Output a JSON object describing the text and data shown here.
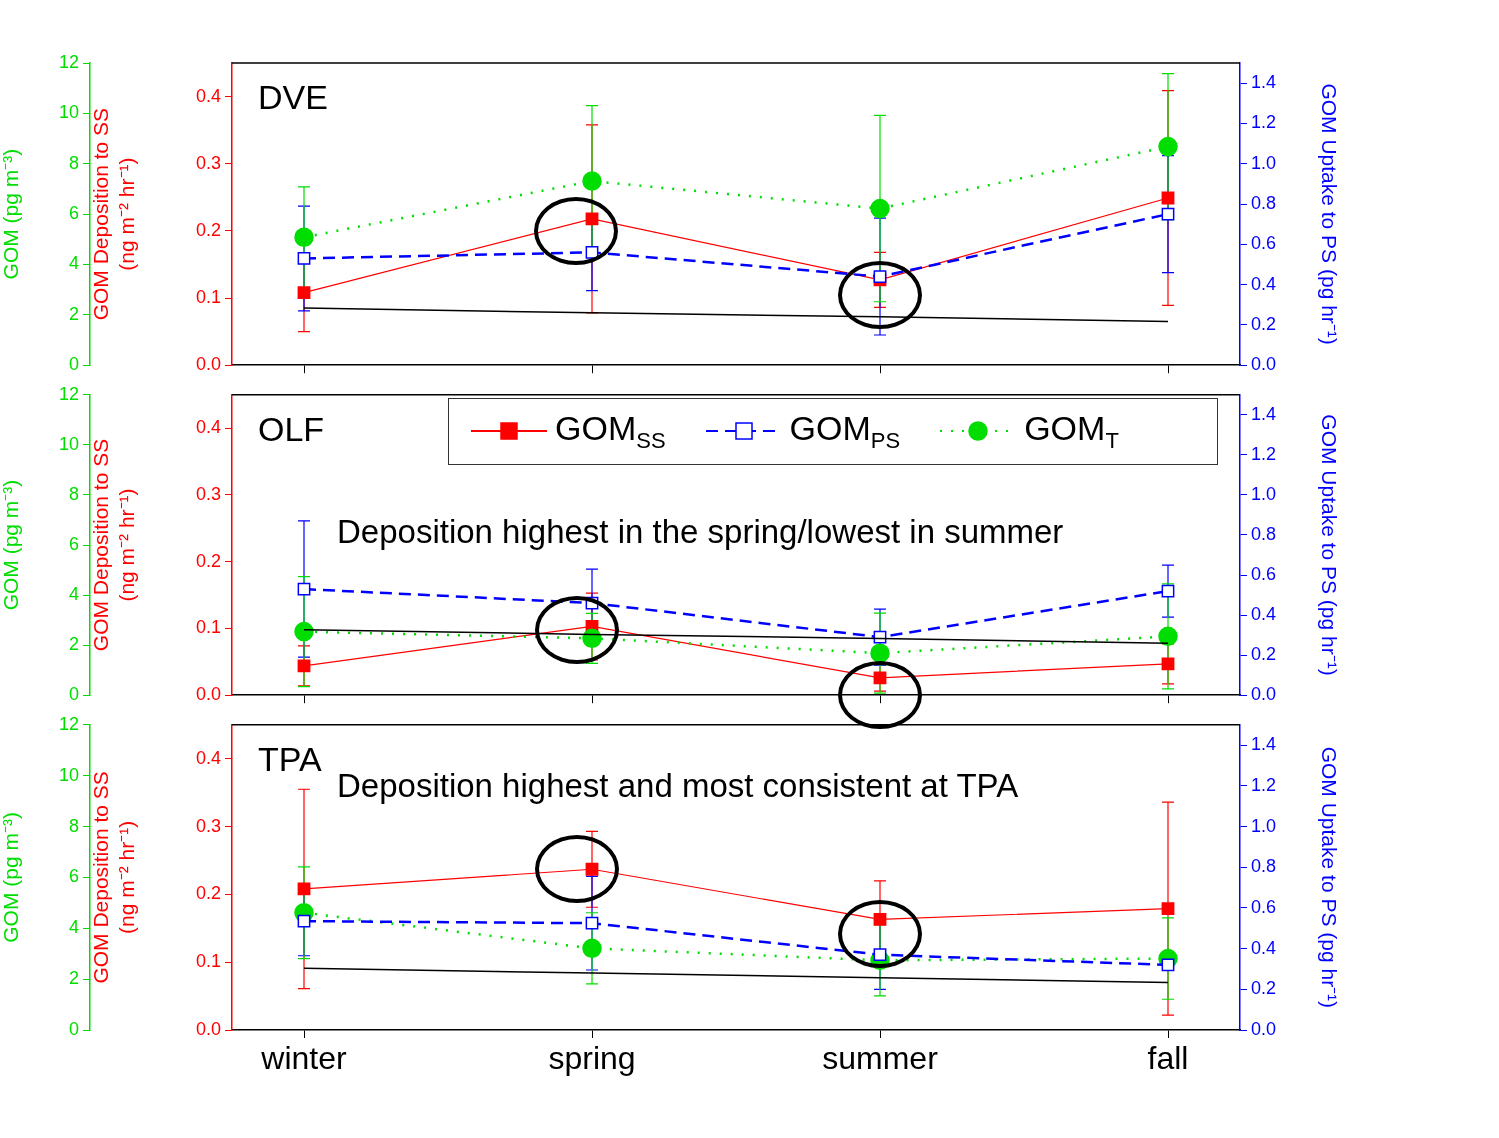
{
  "chart_data": [
    {
      "type": "line",
      "title": "DVE",
      "categories": [
        null,
        null,
        null,
        null
      ],
      "tick_labels": "y",
      "ylabel": "GOM Deposition to SS (ng m⁻² hr⁻¹)",
      "y2label": "GOM Uptake to PS (pg hr⁻¹)",
      "y3label": "GOM (pg m⁻³)",
      "ylim": [
        0,
        0.45
      ],
      "yticks": [
        {
          "value": 0,
          "label": "0.0"
        },
        {
          "value": 0.1,
          "label": "0.1"
        },
        {
          "value": 0.2,
          "label": "0.2"
        },
        {
          "value": 0.3,
          "label": "0.3"
        },
        {
          "value": 0.4,
          "label": "0.4"
        }
      ],
      "y2lim": [
        0,
        1.5
      ],
      "y2ticks": [
        {
          "value": 0,
          "label": "0.0"
        },
        {
          "value": 0.2,
          "label": "0.2"
        },
        {
          "value": 0.4,
          "label": "0.4"
        },
        {
          "value": 0.6,
          "label": "0.6"
        },
        {
          "value": 0.8,
          "label": "0.8"
        },
        {
          "value": 1,
          "label": "1.0"
        },
        {
          "value": 1.2,
          "label": "1.2"
        },
        {
          "value": 1.4,
          "label": "1.4"
        }
      ],
      "y3lim": [
        0,
        12
      ],
      "y3ticks": [
        0,
        2,
        4,
        6,
        8,
        10,
        12
      ],
      "series": [
        {
          "color": "#ff0000",
          "axis": "y",
          "marker": "square",
          "line_style": "solid",
          "values": [
            0.108,
            0.218,
            0.127,
            0.249
          ],
          "errors": [
            0.058,
            0.14,
            0.041,
            0.16
          ]
        },
        {
          "color": "#0000ff",
          "axis": "y2",
          "marker": "square",
          "line_style": "dashed",
          "values": [
            0.53,
            0.56,
            0.44,
            0.75
          ],
          "errors": [
            0.26,
            0.19,
            0.29,
            0.29
          ]
        },
        {
          "color": "#00dd00",
          "axis": "y3",
          "marker": "circle",
          "line_style": "dotted",
          "values": [
            5.08,
            7.31,
            6.22,
            8.68
          ],
          "errors": [
            2.0,
            3.0,
            3.7,
            2.9
          ]
        },
        {
          "color": "#000000",
          "axis": "y",
          "marker": "none",
          "line_style": "solid",
          "values": [
            0.085,
            0.078,
            0.072,
            0.065
          ]
        }
      ]
    },
    {
      "type": "line",
      "title": "OLF",
      "categories": [
        null,
        null,
        null,
        null
      ],
      "tick_labels": "y",
      "legend": "top",
      "ylabel": "GOM Deposition to SS (ng m⁻² hr⁻¹)",
      "y2label": "GOM Uptake to PS (pg hr⁻¹)",
      "y3label": "GOM (pg m⁻³)",
      "ylim": [
        0,
        0.45
      ],
      "yticks": [
        {
          "value": 0,
          "label": "0.0"
        },
        {
          "value": 0.1,
          "label": "0.1"
        },
        {
          "value": 0.2,
          "label": "0.2"
        },
        {
          "value": 0.3,
          "label": "0.3"
        },
        {
          "value": 0.4,
          "label": "0.4"
        }
      ],
      "y2lim": [
        0,
        1.5
      ],
      "y2ticks": [
        {
          "value": 0,
          "label": "0.0"
        },
        {
          "value": 0.2,
          "label": "0.2"
        },
        {
          "value": 0.4,
          "label": "0.4"
        },
        {
          "value": 0.6,
          "label": "0.6"
        },
        {
          "value": 0.8,
          "label": "0.8"
        },
        {
          "value": 1,
          "label": "1.0"
        },
        {
          "value": 1.2,
          "label": "1.2"
        },
        {
          "value": 1.4,
          "label": "1.4"
        }
      ],
      "y3lim": [
        0,
        12
      ],
      "y3ticks": [
        0,
        2,
        4,
        6,
        8,
        10,
        12
      ],
      "annotations": [
        "Deposition highest in the spring/lowest in summer"
      ],
      "series": [
        {
          "name": "GOM$_{SS}$",
          "color": "#ff0000",
          "axis": "y",
          "marker": "square",
          "line_style": "solid",
          "values": [
            0.044,
            0.103,
            0.026,
            0.047
          ],
          "errors": [
            0.03,
            0.05,
            0.02,
            0.03
          ]
        },
        {
          "name": "GOM$_{PS}$",
          "color": "#0000ff",
          "axis": "y2",
          "marker": "square",
          "line_style": "dashed",
          "values": [
            0.53,
            0.46,
            0.29,
            0.52
          ],
          "errors": [
            0.34,
            0.17,
            0.14,
            0.13
          ]
        },
        {
          "name": "GOM$_{T}$",
          "color": "#00dd00",
          "axis": "y3",
          "marker": "circle",
          "line_style": "dotted",
          "values": [
            2.54,
            2.27,
            1.68,
            2.35
          ],
          "errors": [
            2.2,
            1.0,
            1.6,
            2.1
          ]
        },
        {
          "color": "#000000",
          "axis": "y",
          "marker": "none",
          "line_style": "solid",
          "values": [
            0.098,
            0.091,
            0.085,
            0.078
          ]
        }
      ]
    },
    {
      "type": "line",
      "title": "TPA",
      "categories": [
        "winter",
        "spring",
        "summer",
        "fall"
      ],
      "ylabel": "GOM Deposition to SS (ng m⁻² hr⁻¹)",
      "y2label": "GOM Uptake to PS (pg hr⁻¹)",
      "y3label": "GOM (pg m⁻³)",
      "ylim": [
        0,
        0.45
      ],
      "yticks": [
        {
          "value": 0,
          "label": "0.0"
        },
        {
          "value": 0.1,
          "label": "0.1"
        },
        {
          "value": 0.2,
          "label": "0.2"
        },
        {
          "value": 0.3,
          "label": "0.3"
        },
        {
          "value": 0.4,
          "label": "0.4"
        }
      ],
      "y2lim": [
        0,
        1.5
      ],
      "y2ticks": [
        {
          "value": 0,
          "label": "0.0"
        },
        {
          "value": 0.2,
          "label": "0.2"
        },
        {
          "value": 0.4,
          "label": "0.4"
        },
        {
          "value": 0.6,
          "label": "0.6"
        },
        {
          "value": 0.8,
          "label": "0.8"
        },
        {
          "value": 1,
          "label": "1.0"
        },
        {
          "value": 1.2,
          "label": "1.2"
        },
        {
          "value": 1.4,
          "label": "1.4"
        }
      ],
      "y3lim": [
        0,
        12
      ],
      "y3ticks": [
        0,
        2,
        4,
        6,
        8,
        10,
        12
      ],
      "annotations": [
        "Deposition highest and most consistent at TPA"
      ],
      "series": [
        {
          "color": "#ff0000",
          "axis": "y",
          "marker": "square",
          "line_style": "solid",
          "values": [
            0.208,
            0.237,
            0.163,
            0.179
          ],
          "errors": [
            0.147,
            0.056,
            0.057,
            0.157
          ]
        },
        {
          "color": "#0000ff",
          "axis": "y2",
          "marker": "square",
          "line_style": "dashed",
          "values": [
            0.535,
            0.525,
            0.37,
            0.32
          ],
          "errors": [
            0.17,
            0.23,
            0.17,
            null
          ]
        },
        {
          "color": "#00dd00",
          "axis": "y3",
          "marker": "circle",
          "line_style": "dotted",
          "values": [
            4.61,
            3.21,
            2.74,
            2.81
          ],
          "errors": [
            1.8,
            1.4,
            1.4,
            1.6
          ]
        },
        {
          "color": "#000000",
          "axis": "y",
          "marker": "none",
          "line_style": "solid",
          "values": [
            0.091,
            0.084,
            0.077,
            0.07
          ]
        }
      ]
    }
  ]
}
